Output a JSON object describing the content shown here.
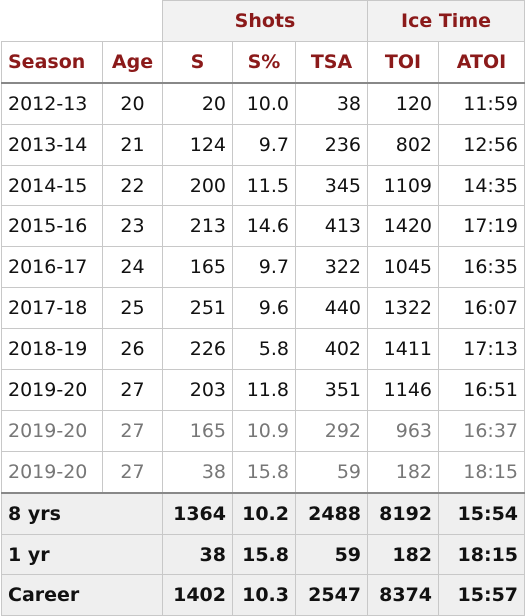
{
  "groups": {
    "shots": "Shots",
    "ice_time": "Ice Time"
  },
  "columns": [
    "Season",
    "Age",
    "S",
    "S%",
    "TSA",
    "TOI",
    "ATOI"
  ],
  "rows": [
    {
      "season": "2012-13",
      "age": "20",
      "s": "20",
      "s_pct": "10.0",
      "tsa": "38",
      "toi": "120",
      "atoi": "11:59"
    },
    {
      "season": "2013-14",
      "age": "21",
      "s": "124",
      "s_pct": "9.7",
      "tsa": "236",
      "toi": "802",
      "atoi": "12:56"
    },
    {
      "season": "2014-15",
      "age": "22",
      "s": "200",
      "s_pct": "11.5",
      "tsa": "345",
      "toi": "1109",
      "atoi": "14:35"
    },
    {
      "season": "2015-16",
      "age": "23",
      "s": "213",
      "s_pct": "14.6",
      "tsa": "413",
      "toi": "1420",
      "atoi": "17:19"
    },
    {
      "season": "2016-17",
      "age": "24",
      "s": "165",
      "s_pct": "9.7",
      "tsa": "322",
      "toi": "1045",
      "atoi": "16:35"
    },
    {
      "season": "2017-18",
      "age": "25",
      "s": "251",
      "s_pct": "9.6",
      "tsa": "440",
      "toi": "1322",
      "atoi": "16:07"
    },
    {
      "season": "2018-19",
      "age": "26",
      "s": "226",
      "s_pct": "5.8",
      "tsa": "402",
      "toi": "1411",
      "atoi": "17:13"
    },
    {
      "season": "2019-20",
      "age": "27",
      "s": "203",
      "s_pct": "11.8",
      "tsa": "351",
      "toi": "1146",
      "atoi": "16:51"
    },
    {
      "season": "2019-20",
      "age": "27",
      "s": "165",
      "s_pct": "10.9",
      "tsa": "292",
      "toi": "963",
      "atoi": "16:37"
    },
    {
      "season": "2019-20",
      "age": "27",
      "s": "38",
      "s_pct": "15.8",
      "tsa": "59",
      "toi": "182",
      "atoi": "18:15"
    }
  ],
  "totals": [
    {
      "label": "8 yrs",
      "s": "1364",
      "s_pct": "10.2",
      "tsa": "2488",
      "toi": "8192",
      "atoi": "15:54"
    },
    {
      "label": "1 yr",
      "s": "38",
      "s_pct": "15.8",
      "tsa": "59",
      "toi": "182",
      "atoi": "18:15"
    },
    {
      "label": "Career",
      "s": "1402",
      "s_pct": "10.3",
      "tsa": "2547",
      "toi": "8374",
      "atoi": "15:57"
    }
  ],
  "colors": {
    "header_text": "#8b1a1a",
    "partial_row_text": "#777777",
    "summary_bg": "#efefef"
  }
}
